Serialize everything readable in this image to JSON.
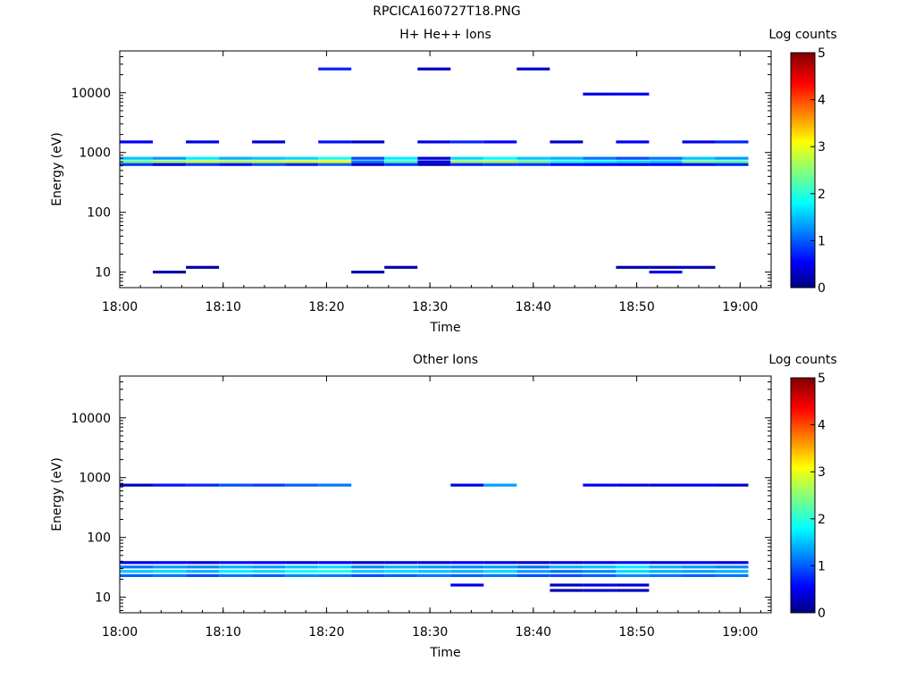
{
  "page": {
    "title": "RPCICA160727T18.PNG"
  },
  "chart_data": [
    {
      "type": "heatmap",
      "title": "H+ He++ Ions",
      "xlabel": "Time",
      "ylabel": "Energy (eV)",
      "colorbar_label": "Log counts",
      "colorbar_ticks": [
        "0",
        "1",
        "2",
        "3",
        "4",
        "5"
      ],
      "colorbar_range": [
        0,
        5
      ],
      "x_ticks": [
        "18:00",
        "18:10",
        "18:20",
        "18:30",
        "18:40",
        "18:50",
        "19:00"
      ],
      "y_ticks": [
        "10",
        "100",
        "1000",
        "10000"
      ],
      "y_scale": "log",
      "y_range": [
        5.5,
        50000
      ],
      "x_range_minutes": [
        0,
        63
      ],
      "time_bins": 19,
      "bin_start_minutes": 0,
      "bin_width_minutes": 3.2,
      "grid": false,
      "notes": "Sparse count spectrogram; strong band near 700-800 eV.",
      "cells": [
        [
          700,
          0,
          2.4
        ],
        [
          700,
          1,
          2.6
        ],
        [
          700,
          2,
          2.8
        ],
        [
          700,
          3,
          2.7
        ],
        [
          700,
          4,
          2.8
        ],
        [
          700,
          5,
          2.9
        ],
        [
          700,
          6,
          3.0
        ],
        [
          700,
          7,
          1.2
        ],
        [
          700,
          8,
          2.2
        ],
        [
          700,
          9,
          0.5
        ],
        [
          700,
          10,
          2.6
        ],
        [
          700,
          11,
          2.7
        ],
        [
          700,
          12,
          2.4
        ],
        [
          700,
          13,
          2.0
        ],
        [
          700,
          14,
          1.8
        ],
        [
          700,
          15,
          1.7
        ],
        [
          700,
          16,
          1.6
        ],
        [
          700,
          17,
          2.4
        ],
        [
          700,
          18,
          2.3
        ],
        [
          800,
          0,
          1.6
        ],
        [
          800,
          1,
          1.4
        ],
        [
          800,
          2,
          1.8
        ],
        [
          800,
          3,
          1.5
        ],
        [
          800,
          4,
          1.6
        ],
        [
          800,
          5,
          1.7
        ],
        [
          800,
          6,
          2.0
        ],
        [
          800,
          7,
          1.0
        ],
        [
          800,
          8,
          1.8
        ],
        [
          800,
          9,
          0.4
        ],
        [
          800,
          10,
          1.7
        ],
        [
          800,
          11,
          1.9
        ],
        [
          800,
          12,
          1.6
        ],
        [
          800,
          13,
          1.5
        ],
        [
          800,
          14,
          1.2
        ],
        [
          800,
          15,
          1.0
        ],
        [
          800,
          16,
          1.2
        ],
        [
          800,
          17,
          1.6
        ],
        [
          800,
          18,
          1.4
        ],
        [
          630,
          0,
          0.9
        ],
        [
          630,
          1,
          0.5
        ],
        [
          630,
          2,
          0.9
        ],
        [
          630,
          3,
          0.7
        ],
        [
          630,
          4,
          1.0
        ],
        [
          630,
          5,
          0.8
        ],
        [
          630,
          6,
          1.1
        ],
        [
          630,
          7,
          0.4
        ],
        [
          630,
          8,
          0.9
        ],
        [
          630,
          9,
          0.3
        ],
        [
          630,
          10,
          0.8
        ],
        [
          630,
          11,
          0.9
        ],
        [
          630,
          12,
          0.9
        ],
        [
          630,
          13,
          0.7
        ],
        [
          630,
          14,
          0.6
        ],
        [
          630,
          15,
          0.5
        ],
        [
          630,
          16,
          0.6
        ],
        [
          630,
          17,
          0.7
        ],
        [
          630,
          18,
          0.8
        ],
        [
          1500,
          0,
          0.6
        ],
        [
          1500,
          2,
          0.5
        ],
        [
          1500,
          4,
          0.4
        ],
        [
          1500,
          6,
          0.7
        ],
        [
          1500,
          7,
          0.4
        ],
        [
          1500,
          9,
          0.5
        ],
        [
          1500,
          10,
          0.8
        ],
        [
          1500,
          11,
          0.6
        ],
        [
          1500,
          13,
          0.4
        ],
        [
          1500,
          15,
          0.6
        ],
        [
          1500,
          17,
          0.5
        ],
        [
          1500,
          18,
          0.8
        ],
        [
          25000,
          6,
          0.8
        ],
        [
          25000,
          9,
          0.3
        ],
        [
          25000,
          12,
          0.4
        ],
        [
          9500,
          14,
          0.5
        ],
        [
          9500,
          15,
          0.6
        ],
        [
          10,
          1,
          0.2
        ],
        [
          10,
          7,
          0.2
        ],
        [
          10,
          16,
          0.6
        ],
        [
          12,
          2,
          0.2
        ],
        [
          12,
          8,
          0.2
        ],
        [
          12,
          15,
          0.2
        ],
        [
          12,
          16,
          0.2
        ],
        [
          12,
          17,
          0.3
        ]
      ]
    },
    {
      "type": "heatmap",
      "title": "Other Ions",
      "xlabel": "Time",
      "ylabel": "Energy (eV)",
      "colorbar_label": "Log counts",
      "colorbar_ticks": [
        "0",
        "1",
        "2",
        "3",
        "4",
        "5"
      ],
      "colorbar_range": [
        0,
        5
      ],
      "x_ticks": [
        "18:00",
        "18:10",
        "18:20",
        "18:30",
        "18:40",
        "18:50",
        "19:00"
      ],
      "y_ticks": [
        "10",
        "100",
        "1000",
        "10000"
      ],
      "y_scale": "log",
      "y_range": [
        5.5,
        50000
      ],
      "x_range_minutes": [
        0,
        63
      ],
      "time_bins": 19,
      "bin_start_minutes": 0,
      "bin_width_minutes": 3.2,
      "grid": false,
      "notes": "Sparse count spectrogram; strong band near 20-35 eV, weaker band near 750 eV.",
      "cells": [
        [
          32,
          0,
          1.2
        ],
        [
          32,
          1,
          1.4
        ],
        [
          32,
          2,
          1.3
        ],
        [
          32,
          3,
          1.5
        ],
        [
          32,
          4,
          1.4
        ],
        [
          32,
          5,
          1.6
        ],
        [
          32,
          6,
          1.7
        ],
        [
          32,
          7,
          1.3
        ],
        [
          32,
          8,
          1.5
        ],
        [
          32,
          9,
          1.4
        ],
        [
          32,
          10,
          1.3
        ],
        [
          32,
          11,
          1.4
        ],
        [
          32,
          12,
          1.2
        ],
        [
          32,
          13,
          1.5
        ],
        [
          32,
          14,
          1.6
        ],
        [
          32,
          15,
          1.8
        ],
        [
          32,
          16,
          1.5
        ],
        [
          32,
          17,
          1.4
        ],
        [
          32,
          18,
          1.3
        ],
        [
          27,
          0,
          1.6
        ],
        [
          27,
          1,
          1.7
        ],
        [
          27,
          2,
          1.5
        ],
        [
          27,
          3,
          1.8
        ],
        [
          27,
          4,
          1.7
        ],
        [
          27,
          5,
          1.9
        ],
        [
          27,
          6,
          2.0
        ],
        [
          27,
          7,
          1.6
        ],
        [
          27,
          8,
          1.7
        ],
        [
          27,
          9,
          1.6
        ],
        [
          27,
          10,
          1.5
        ],
        [
          27,
          11,
          1.7
        ],
        [
          27,
          12,
          1.4
        ],
        [
          27,
          13,
          1.2
        ],
        [
          27,
          14,
          1.3
        ],
        [
          27,
          15,
          1.7
        ],
        [
          27,
          16,
          1.5
        ],
        [
          27,
          17,
          1.4
        ],
        [
          27,
          18,
          1.5
        ],
        [
          23,
          0,
          1.1
        ],
        [
          23,
          1,
          1.2
        ],
        [
          23,
          2,
          1.0
        ],
        [
          23,
          3,
          1.2
        ],
        [
          23,
          4,
          1.1
        ],
        [
          23,
          5,
          1.3
        ],
        [
          23,
          6,
          1.2
        ],
        [
          23,
          7,
          1.0
        ],
        [
          23,
          8,
          1.1
        ],
        [
          23,
          9,
          1.2
        ],
        [
          23,
          10,
          1.1
        ],
        [
          23,
          11,
          1.2
        ],
        [
          23,
          12,
          1.0
        ],
        [
          23,
          13,
          1.0
        ],
        [
          23,
          14,
          1.1
        ],
        [
          23,
          15,
          1.3
        ],
        [
          23,
          16,
          1.2
        ],
        [
          23,
          17,
          1.1
        ],
        [
          23,
          18,
          1.2
        ],
        [
          38,
          0,
          0.5
        ],
        [
          38,
          1,
          0.6
        ],
        [
          38,
          2,
          0.5
        ],
        [
          38,
          3,
          0.7
        ],
        [
          38,
          4,
          0.6
        ],
        [
          38,
          5,
          0.5
        ],
        [
          38,
          6,
          0.6
        ],
        [
          38,
          7,
          0.4
        ],
        [
          38,
          8,
          0.5
        ],
        [
          38,
          9,
          0.5
        ],
        [
          38,
          10,
          0.6
        ],
        [
          38,
          11,
          0.5
        ],
        [
          38,
          12,
          0.4
        ],
        [
          38,
          13,
          0.5
        ],
        [
          38,
          14,
          0.6
        ],
        [
          38,
          15,
          0.7
        ],
        [
          38,
          16,
          0.5
        ],
        [
          38,
          17,
          0.6
        ],
        [
          38,
          18,
          0.5
        ],
        [
          750,
          0,
          0.3
        ],
        [
          750,
          1,
          0.7
        ],
        [
          750,
          2,
          0.8
        ],
        [
          750,
          3,
          1.0
        ],
        [
          750,
          4,
          0.9
        ],
        [
          750,
          5,
          1.1
        ],
        [
          750,
          6,
          1.2
        ],
        [
          750,
          10,
          0.5
        ],
        [
          750,
          11,
          1.4
        ],
        [
          750,
          14,
          0.6
        ],
        [
          750,
          15,
          0.5
        ],
        [
          750,
          16,
          0.5
        ],
        [
          750,
          17,
          0.6
        ],
        [
          750,
          18,
          0.4
        ],
        [
          16,
          10,
          0.5
        ],
        [
          16,
          13,
          0.3
        ],
        [
          16,
          14,
          0.5
        ],
        [
          16,
          15,
          0.4
        ],
        [
          13,
          13,
          0.3
        ],
        [
          13,
          14,
          0.4
        ],
        [
          13,
          15,
          0.3
        ]
      ]
    }
  ]
}
